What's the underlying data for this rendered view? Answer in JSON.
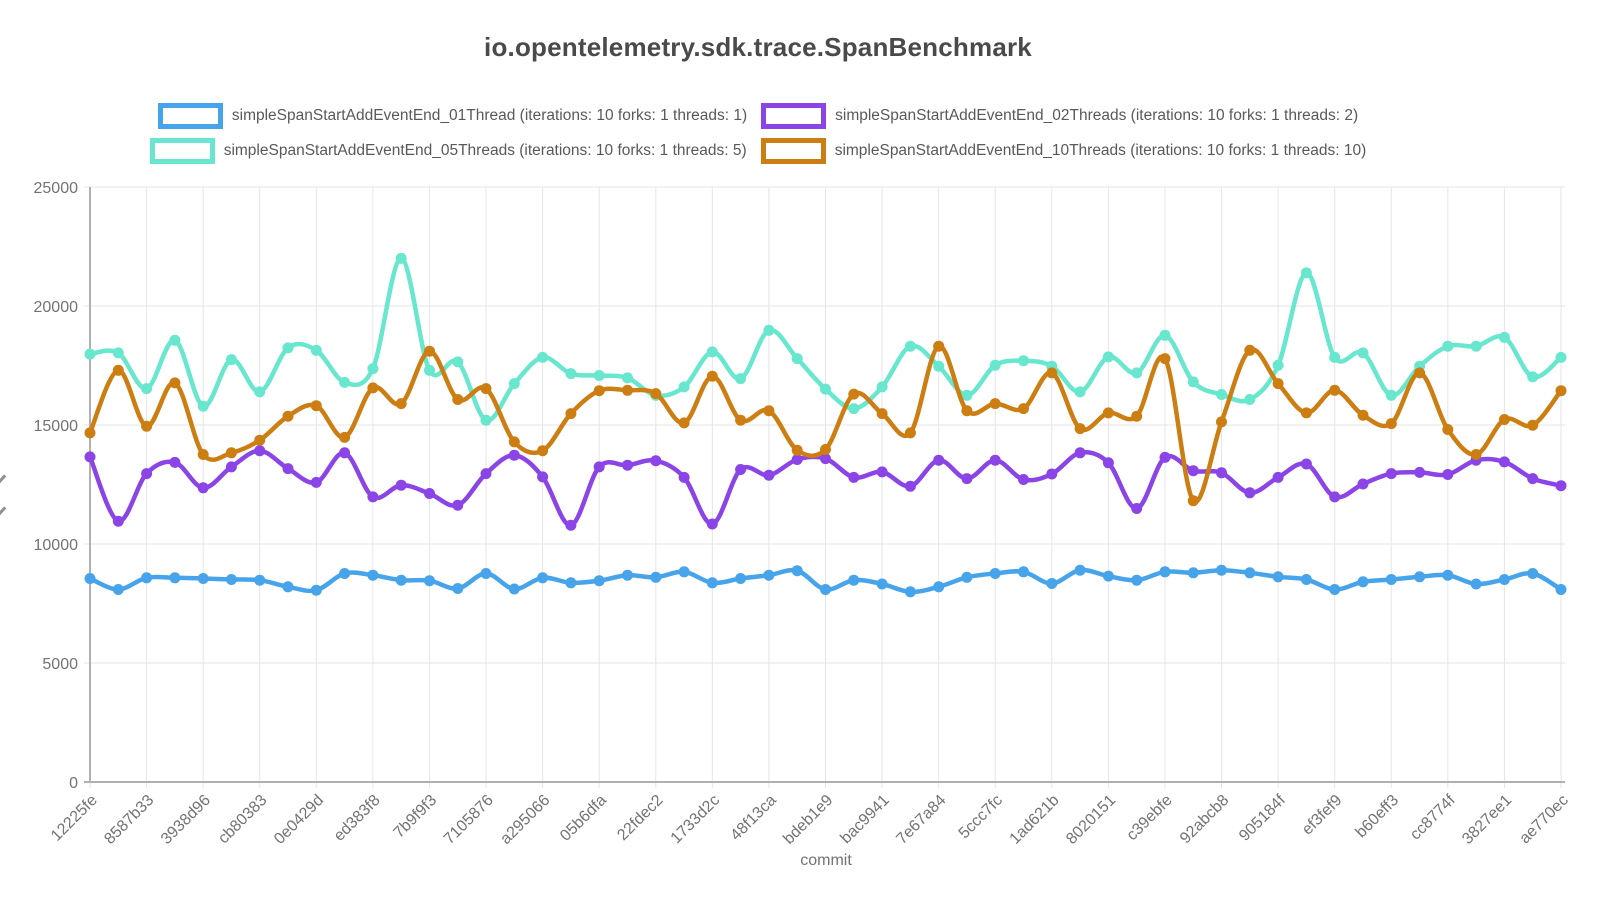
{
  "page": {
    "background": "#ffffff"
  },
  "chart_data": {
    "type": "line",
    "title": "io.opentelemetry.sdk.trace.SpanBenchmark",
    "xlabel": "commit",
    "ylabel": "",
    "ylim": [
      0,
      25000
    ],
    "y_ticks": [
      0,
      5000,
      10000,
      15000,
      20000,
      25000
    ],
    "x_tick_labels": [
      "12225fe",
      "8587b33",
      "3938d96",
      "cb80383",
      "0e0429d",
      "ed383f8",
      "7b9f9f3",
      "7105876",
      "a295066",
      "05b6dfa",
      "22fdec2",
      "1733d2c",
      "48f13ca",
      "bdeb1e9",
      "bac9941",
      "7e67a84",
      "5ccc7fc",
      "1ad621b",
      "8020151",
      "c39ebfe",
      "92abcb8",
      "905184f",
      "ef3fef9",
      "b60eff3",
      "cc8774f",
      "3827ee1",
      "ae770ec"
    ],
    "points_per_tick": 2,
    "grid": true,
    "legend_position": "top",
    "legend_rows": [
      [
        0,
        1
      ],
      [
        2,
        3
      ]
    ],
    "series": [
      {
        "name": "simpleSpanStartAddEventEnd_01Thread (iterations: 10 forks: 1 threads: 1)",
        "color": "#47a4ea",
        "values": [
          8550,
          8090,
          8580,
          8580,
          8550,
          8510,
          8480,
          8200,
          8060,
          8760,
          8690,
          8480,
          8460,
          8130,
          8760,
          8110,
          8580,
          8370,
          8460,
          8690,
          8600,
          8830,
          8370,
          8550,
          8690,
          8880,
          8090,
          8480,
          8320,
          7990,
          8200,
          8600,
          8760,
          8830,
          8340,
          8900,
          8650,
          8480,
          8830,
          8790,
          8900,
          8790,
          8620,
          8510,
          8090,
          8410,
          8510,
          8620,
          8690,
          8320,
          8510,
          8760,
          8090
        ]
      },
      {
        "name": "simpleSpanStartAddEventEnd_02Threads (iterations: 10 forks: 1 threads: 2)",
        "color": "#8b45e6",
        "values": [
          13660,
          10960,
          12960,
          13430,
          12360,
          13240,
          13920,
          13170,
          12590,
          13830,
          11980,
          12470,
          12120,
          11630,
          12960,
          13730,
          12820,
          10790,
          13240,
          13310,
          13500,
          12800,
          10840,
          13130,
          12890,
          13550,
          13590,
          12800,
          13030,
          12430,
          13520,
          12750,
          13520,
          12710,
          12940,
          13830,
          13410,
          11490,
          13640,
          13080,
          12990,
          12150,
          12800,
          13360,
          11980,
          12520,
          12960,
          13010,
          12920,
          13520,
          13450,
          12750,
          12450
        ]
      },
      {
        "name": "simpleSpanStartAddEventEnd_05Threads (iterations: 10 forks: 1 threads: 5)",
        "color": "#68e7ce",
        "values": [
          17980,
          18030,
          16530,
          18560,
          15790,
          17750,
          16390,
          18240,
          18140,
          16790,
          17370,
          22000,
          17300,
          17650,
          15200,
          16740,
          17840,
          17160,
          17080,
          16980,
          16250,
          16600,
          18070,
          16950,
          18980,
          17790,
          16510,
          15690,
          16600,
          18310,
          17470,
          16250,
          17510,
          17700,
          17470,
          16390,
          17860,
          17190,
          18770,
          16810,
          16280,
          16070,
          17510,
          21390,
          17840,
          18030,
          16250,
          17470,
          18310,
          18310,
          18680,
          17020,
          17840
        ]
      },
      {
        "name": "simpleSpanStartAddEventEnd_10Threads (iterations: 10 forks: 1 threads: 10)",
        "color": "#cd7e13",
        "values": [
          14670,
          17300,
          14950,
          16770,
          13760,
          13830,
          14360,
          15370,
          15810,
          14480,
          16560,
          15900,
          18100,
          16070,
          16530,
          14290,
          13920,
          15480,
          16440,
          16460,
          16320,
          15090,
          17050,
          15200,
          15600,
          13940,
          13970,
          16300,
          15480,
          14670,
          18310,
          15600,
          15900,
          15690,
          17190,
          14850,
          15510,
          15370,
          17790,
          11820,
          15130,
          18140,
          16740,
          15510,
          16460,
          15410,
          15060,
          17190,
          14810,
          13760,
          15230,
          14990,
          16440
        ]
      }
    ]
  }
}
